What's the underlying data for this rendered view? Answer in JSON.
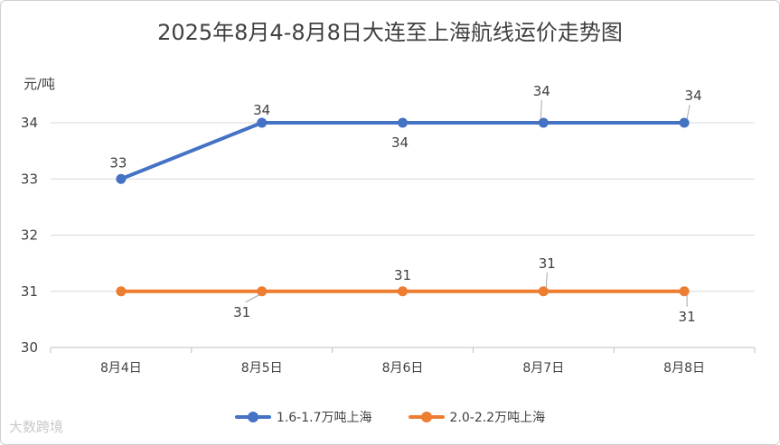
{
  "chart_data": {
    "type": "line",
    "title": "2025年8月4-8月8日大连至上海航线运价走势图",
    "ylabel": "元/吨",
    "xlabel": "",
    "categories": [
      "8月4日",
      "8月5日",
      "8月6日",
      "8月7日",
      "8月8日"
    ],
    "ylim": [
      30,
      34
    ],
    "yticks": [
      30,
      31,
      32,
      33,
      34
    ],
    "grid": true,
    "legend": "bottom",
    "series": [
      {
        "name": "1.6-1.7万吨上海",
        "values": [
          33,
          34,
          34,
          34,
          34
        ],
        "color": "#4472c4"
      },
      {
        "name": "2.0-2.2万吨上海",
        "values": [
          31,
          31,
          31,
          31,
          31
        ],
        "color": "#ed7d31"
      }
    ]
  },
  "watermark": "大数跨境"
}
